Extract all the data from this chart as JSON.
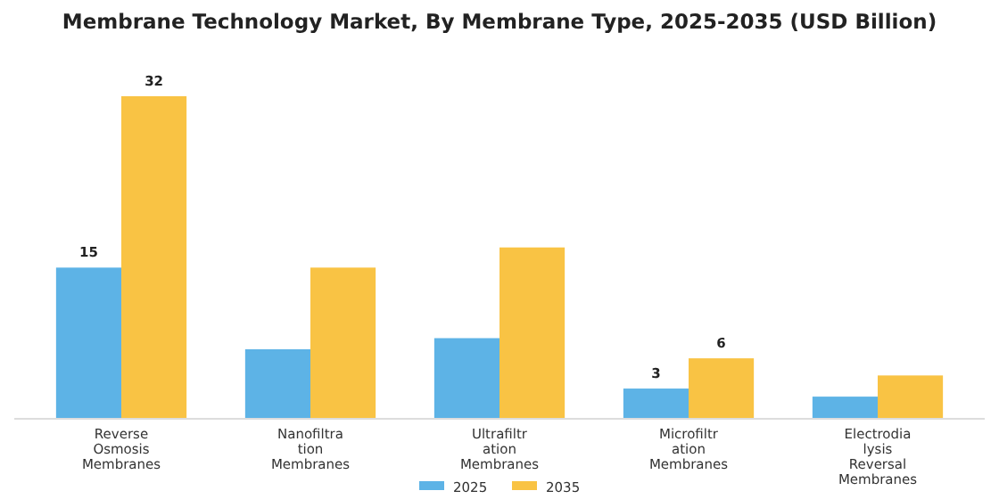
{
  "chart_data": {
    "type": "bar",
    "title": "Membrane Technology Market, By Membrane Type, 2025-2035 (USD Billion)",
    "categories": [
      "Reverse Osmosis Membranes",
      "Nanofiltration Membranes",
      "Ultrafiltration Membranes",
      "Microfiltration Membranes",
      "Electrodialysis Reversal Membranes"
    ],
    "series": [
      {
        "name": "2025",
        "color": "#5db3e6",
        "values": [
          15,
          6.9,
          8,
          3,
          2.2
        ],
        "value_labels": [
          "15",
          null,
          null,
          "3",
          null
        ]
      },
      {
        "name": "2035",
        "color": "#f9c344",
        "values": [
          32,
          15,
          17,
          6,
          4.3
        ],
        "value_labels": [
          "32",
          null,
          null,
          "6",
          null
        ]
      }
    ],
    "legend": "bottom"
  }
}
